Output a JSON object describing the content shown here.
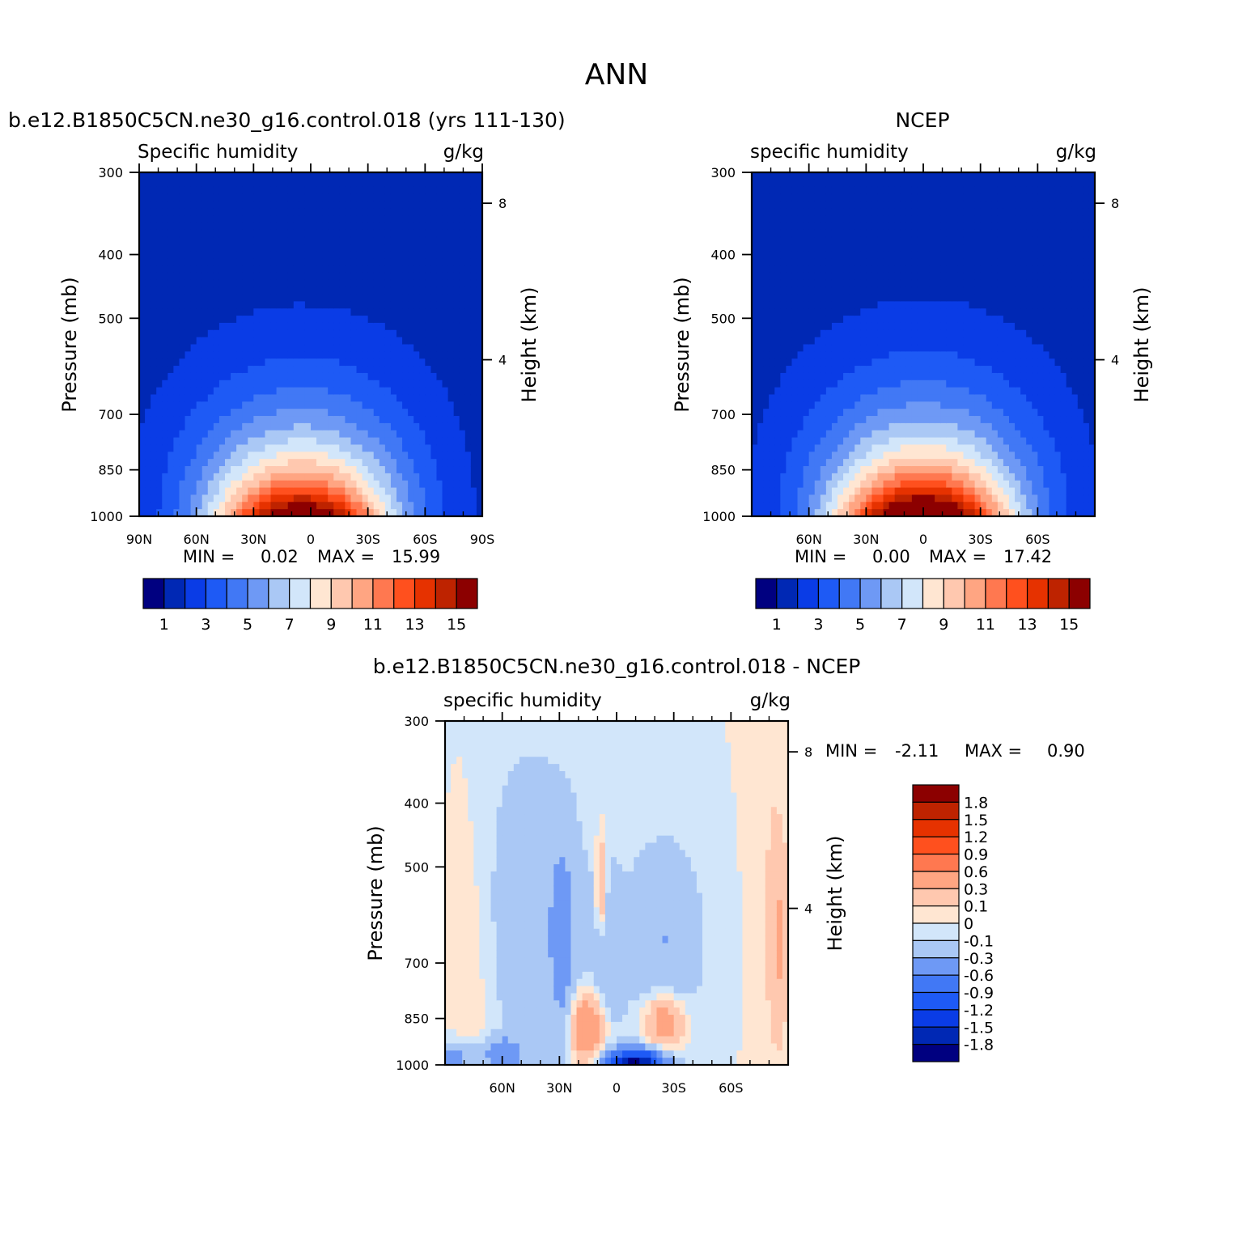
{
  "figure_title": "ANN",
  "chart_data": [
    {
      "type": "heatmap",
      "title": "b.e12.B1850C5CN.ne30_g16.control.018 (yrs 111-130)",
      "left_label": "Specific humidity",
      "right_label": "g/kg",
      "xlabel": "",
      "ylabel": "Pressure (mb)",
      "y2label": "Height (km)",
      "xticks": [
        "90N",
        "60N",
        "30N",
        "0",
        "30S",
        "60S",
        "90S"
      ],
      "x_range": [
        -90,
        90
      ],
      "yticks": [
        "300",
        "400",
        "500",
        "700",
        "850",
        "1000"
      ],
      "y_range_mb": [
        1000,
        300
      ],
      "y_scale": "log",
      "height_ticks_km": [
        "8",
        "4"
      ],
      "stats": {
        "min_label": "MIN =",
        "min": "0.02",
        "max_label": "MAX =",
        "max": "15.99"
      },
      "peak": {
        "lat": 5,
        "value": 16.0
      },
      "levels": [
        0,
        1,
        2,
        3,
        4,
        5,
        6,
        7,
        8,
        9,
        10,
        11,
        12,
        13,
        14,
        15
      ],
      "colors": [
        "#000080",
        "#0028B4",
        "#0A3CE6",
        "#1E5AF5",
        "#4178F5",
        "#6E99F5",
        "#AAC8F5",
        "#D2E6FA",
        "#FFE6D2",
        "#FFC8AF",
        "#FFA582",
        "#FF7850",
        "#FF501E",
        "#E63200",
        "#BE2300",
        "#8C0000"
      ],
      "colorbar_labels": [
        "1",
        "3",
        "5",
        "7",
        "9",
        "11",
        "13",
        "15"
      ],
      "colorbar_orientation": "horizontal"
    },
    {
      "type": "heatmap",
      "title": "NCEP",
      "left_label": "specific humidity",
      "right_label": "g/kg",
      "xlabel": "",
      "ylabel": "Pressure (mb)",
      "y2label": "Height (km)",
      "xticks": [
        "60N",
        "30N",
        "0",
        "30S",
        "60S"
      ],
      "x_range": [
        -90,
        90
      ],
      "yticks": [
        "300",
        "400",
        "500",
        "700",
        "850",
        "1000"
      ],
      "y_range_mb": [
        1000,
        300
      ],
      "y_scale": "log",
      "height_ticks_km": [
        "8",
        "4"
      ],
      "stats": {
        "min_label": "MIN =",
        "min": "0.00",
        "max_label": "MAX =",
        "max": "17.42"
      },
      "peak": {
        "lat": 0,
        "value": 17.4
      },
      "levels": [
        0,
        1,
        2,
        3,
        4,
        5,
        6,
        7,
        8,
        9,
        10,
        11,
        12,
        13,
        14,
        15
      ],
      "colors": [
        "#000080",
        "#0028B4",
        "#0A3CE6",
        "#1E5AF5",
        "#4178F5",
        "#6E99F5",
        "#AAC8F5",
        "#D2E6FA",
        "#FFE6D2",
        "#FFC8AF",
        "#FFA582",
        "#FF7850",
        "#FF501E",
        "#E63200",
        "#BE2300",
        "#8C0000"
      ],
      "colorbar_labels": [
        "1",
        "3",
        "5",
        "7",
        "9",
        "11",
        "13",
        "15"
      ],
      "colorbar_orientation": "horizontal"
    },
    {
      "type": "heatmap",
      "title": "b.e12.B1850C5CN.ne30_g16.control.018 - NCEP",
      "left_label": "specific humidity",
      "right_label": "g/kg",
      "xlabel": "",
      "ylabel": "Pressure (mb)",
      "y2label": "Height (km)",
      "xticks": [
        "60N",
        "30N",
        "0",
        "30S",
        "60S"
      ],
      "x_range": [
        -90,
        90
      ],
      "yticks": [
        "300",
        "400",
        "500",
        "700",
        "850",
        "1000"
      ],
      "y_range_mb": [
        1000,
        300
      ],
      "y_scale": "log",
      "height_ticks_km": [
        "8",
        "4"
      ],
      "stats": {
        "min_label": "MIN =",
        "min": "-2.11",
        "max_label": "MAX =",
        "max": "0.90"
      },
      "levels": [
        -1.8,
        -1.5,
        -1.2,
        -0.9,
        -0.6,
        -0.3,
        -0.1,
        0,
        0.1,
        0.3,
        0.6,
        0.9,
        1.2,
        1.5,
        1.8
      ],
      "colors": [
        "#000080",
        "#0028B4",
        "#0A3CE6",
        "#1E5AF5",
        "#4178F5",
        "#6E99F5",
        "#AAC8F5",
        "#D2E6FA",
        "#FFE6D2",
        "#FFC8AF",
        "#FFA582",
        "#FF7850",
        "#FF501E",
        "#E63200",
        "#BE2300",
        "#8C0000"
      ],
      "colorbar_labels": [
        "1.8",
        "1.5",
        "1.2",
        "0.9",
        "0.6",
        "0.3",
        "0.1",
        "0",
        "-0.1",
        "-0.3",
        "-0.6",
        "-0.9",
        "-1.2",
        "-1.5",
        "-1.8"
      ],
      "colorbar_orientation": "vertical"
    }
  ]
}
